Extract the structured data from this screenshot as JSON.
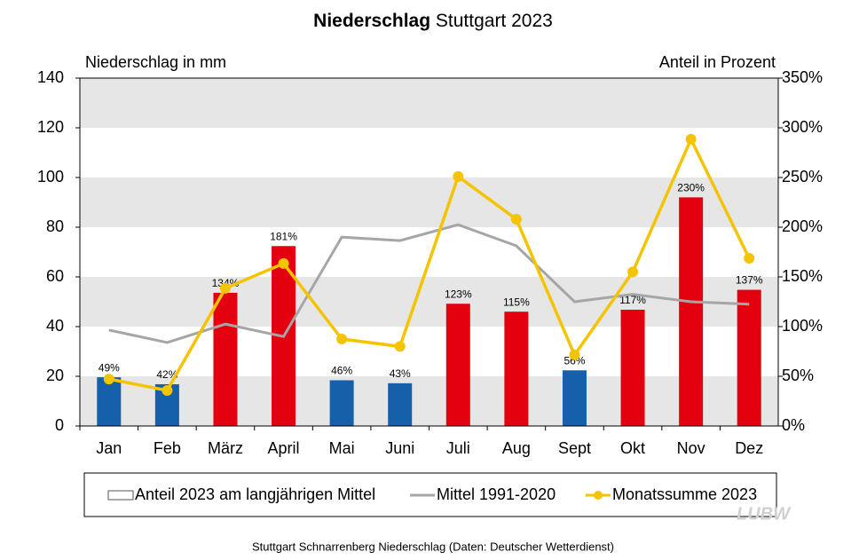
{
  "chart_data": {
    "type": "bar",
    "title_bold": "Niederschlag",
    "title": "Stuttgart 2023",
    "y_label": "Niederschlag  in mm",
    "y2_label": "Anteil in Prozent",
    "footer": "Stuttgart Schnarrenberg Niederschlag (Daten: Deutscher Wetterdienst)",
    "logo": "LUBW",
    "categories": [
      "Jan",
      "Feb",
      "März",
      "April",
      "Mai",
      "Juni",
      "Juli",
      "Aug",
      "Sept",
      "Okt",
      "Nov",
      "Dez"
    ],
    "ylim": [
      0,
      140
    ],
    "yticks": [
      0,
      20,
      40,
      60,
      80,
      100,
      120,
      140
    ],
    "y2lim": [
      0,
      350
    ],
    "y2ticks": [
      {
        "value": 0,
        "label": "0%"
      },
      {
        "value": 50,
        "label": "50%"
      },
      {
        "value": 100,
        "label": "100%"
      },
      {
        "value": 150,
        "label": "150%"
      },
      {
        "value": 200,
        "label": "200%"
      },
      {
        "value": 250,
        "label": "250%"
      },
      {
        "value": 300,
        "label": "300%"
      },
      {
        "value": 350,
        "label": "350%"
      }
    ],
    "grid": true,
    "legend": "bottom",
    "series": [
      {
        "name": "Anteil 2023 am langjährigen Mittel",
        "type": "bar",
        "axis": "y2",
        "color": "#ffffff",
        "colors": [
          "#165fab",
          "#165fab",
          "#e3000f",
          "#e3000f",
          "#165fab",
          "#165fab",
          "#e3000f",
          "#e3000f",
          "#165fab",
          "#e3000f",
          "#e3000f",
          "#e3000f"
        ],
        "values": [
          49,
          42,
          134,
          181,
          46,
          43,
          123,
          115,
          56,
          117,
          230,
          137
        ],
        "value_labels": [
          "49%",
          "42%",
          "134%",
          "181%",
          "46%",
          "43%",
          "123%",
          "115%",
          "56%",
          "117%",
          "230%",
          "137%"
        ]
      },
      {
        "name": "Mittel 1991-2020",
        "type": "line",
        "color": "#a6a6a6",
        "marker": false,
        "values": [
          38.6,
          33.6,
          41,
          36,
          76,
          74.6,
          81,
          72.5,
          50,
          53,
          50,
          49
        ]
      },
      {
        "name": "Monatssumme 2023",
        "type": "line",
        "color": "#f5c400",
        "marker": true,
        "values": [
          18.9,
          14.3,
          55.4,
          65.4,
          35,
          32,
          100.4,
          83.2,
          28.6,
          62,
          115.4,
          67.5
        ]
      }
    ]
  }
}
